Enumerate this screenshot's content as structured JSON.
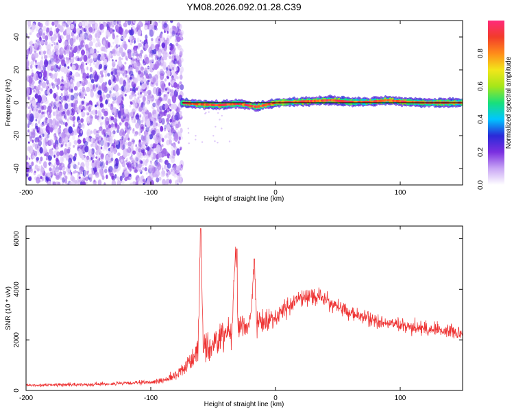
{
  "title": "YM08.2026.092.01.28.C39",
  "chart_data": [
    {
      "type": "heatmap",
      "name": "spectrogram",
      "xlabel": "Height of straight line (km)",
      "ylabel": "Frequency (Hz)",
      "xlim": [
        -200,
        150
      ],
      "ylim": [
        -50,
        50
      ],
      "xticks": [
        -200,
        -100,
        0,
        100
      ],
      "yticks": [
        40,
        20,
        0,
        -20,
        -40
      ],
      "noise_region_x": [
        -200,
        -75
      ],
      "signal_band_x": [
        -75,
        150
      ],
      "signal_band_hz": [
        -5,
        5
      ],
      "centerline_hz": 0,
      "description_series": [
        {
          "name": "signal_peak_frequency_hz",
          "x": [
            -75,
            -60,
            -45,
            -30,
            -15,
            0,
            15,
            30,
            45,
            60,
            75,
            90,
            105,
            120,
            135,
            150
          ],
          "values": [
            0,
            -1,
            -1.5,
            -0.5,
            -2.5,
            0,
            0.5,
            1,
            1.5,
            0.5,
            0.5,
            1.5,
            0.5,
            0,
            0,
            0
          ]
        }
      ],
      "colorbar": {
        "label": "Normalized spectral amplitude",
        "range": [
          0.0,
          1.0
        ],
        "ticks": [
          "0.0",
          "0.2",
          "0.4",
          "0.6",
          "0.8"
        ],
        "colors": [
          "#ffffff",
          "#c9a6f5",
          "#7b2fe0",
          "#2a2ad8",
          "#00c6ff",
          "#19e07a",
          "#a6e619",
          "#f2e61a",
          "#ff8c1a",
          "#f23c2a",
          "#ff2a7a"
        ]
      }
    },
    {
      "type": "line",
      "name": "snr",
      "xlabel": "Height of straight line (km)",
      "ylabel": "SNR (10 * v/v)",
      "xlim": [
        -200,
        150
      ],
      "ylim": [
        0,
        6500
      ],
      "xticks": [
        -200,
        -100,
        0,
        100
      ],
      "yticks": [
        0,
        2000,
        4000,
        6000
      ],
      "color": "#ee3333",
      "series": [
        {
          "name": "SNR",
          "x": [
            -200,
            -180,
            -160,
            -140,
            -120,
            -100,
            -90,
            -80,
            -75,
            -70,
            -65,
            -62,
            -60,
            -58,
            -55,
            -50,
            -45,
            -40,
            -35,
            -32,
            -30,
            -25,
            -20,
            -17,
            -15,
            -10,
            -5,
            0,
            5,
            10,
            15,
            20,
            25,
            30,
            35,
            40,
            45,
            50,
            60,
            70,
            80,
            90,
            100,
            110,
            120,
            130,
            140,
            150
          ],
          "values": [
            200,
            220,
            230,
            250,
            280,
            320,
            400,
            600,
            800,
            1100,
            1400,
            1700,
            6400,
            2000,
            1500,
            1900,
            2100,
            2300,
            2400,
            5600,
            2600,
            2500,
            2700,
            5200,
            2600,
            2700,
            2800,
            2900,
            3100,
            3300,
            3500,
            3650,
            3700,
            3750,
            3700,
            3600,
            3450,
            3300,
            3050,
            2900,
            2750,
            2650,
            2550,
            2500,
            2450,
            2400,
            2350,
            2300
          ],
          "noise_amplitude": [
            60,
            70,
            70,
            80,
            80,
            90,
            120,
            200,
            250,
            500,
            600,
            700,
            300,
            800,
            700,
            700,
            700,
            650,
            600,
            300,
            600,
            550,
            500,
            300,
            500,
            450,
            450,
            400,
            400,
            400,
            380,
            350,
            350,
            350,
            350,
            340,
            330,
            320,
            300,
            300,
            300,
            300,
            300,
            300,
            300,
            300,
            300,
            300
          ]
        }
      ]
    }
  ]
}
